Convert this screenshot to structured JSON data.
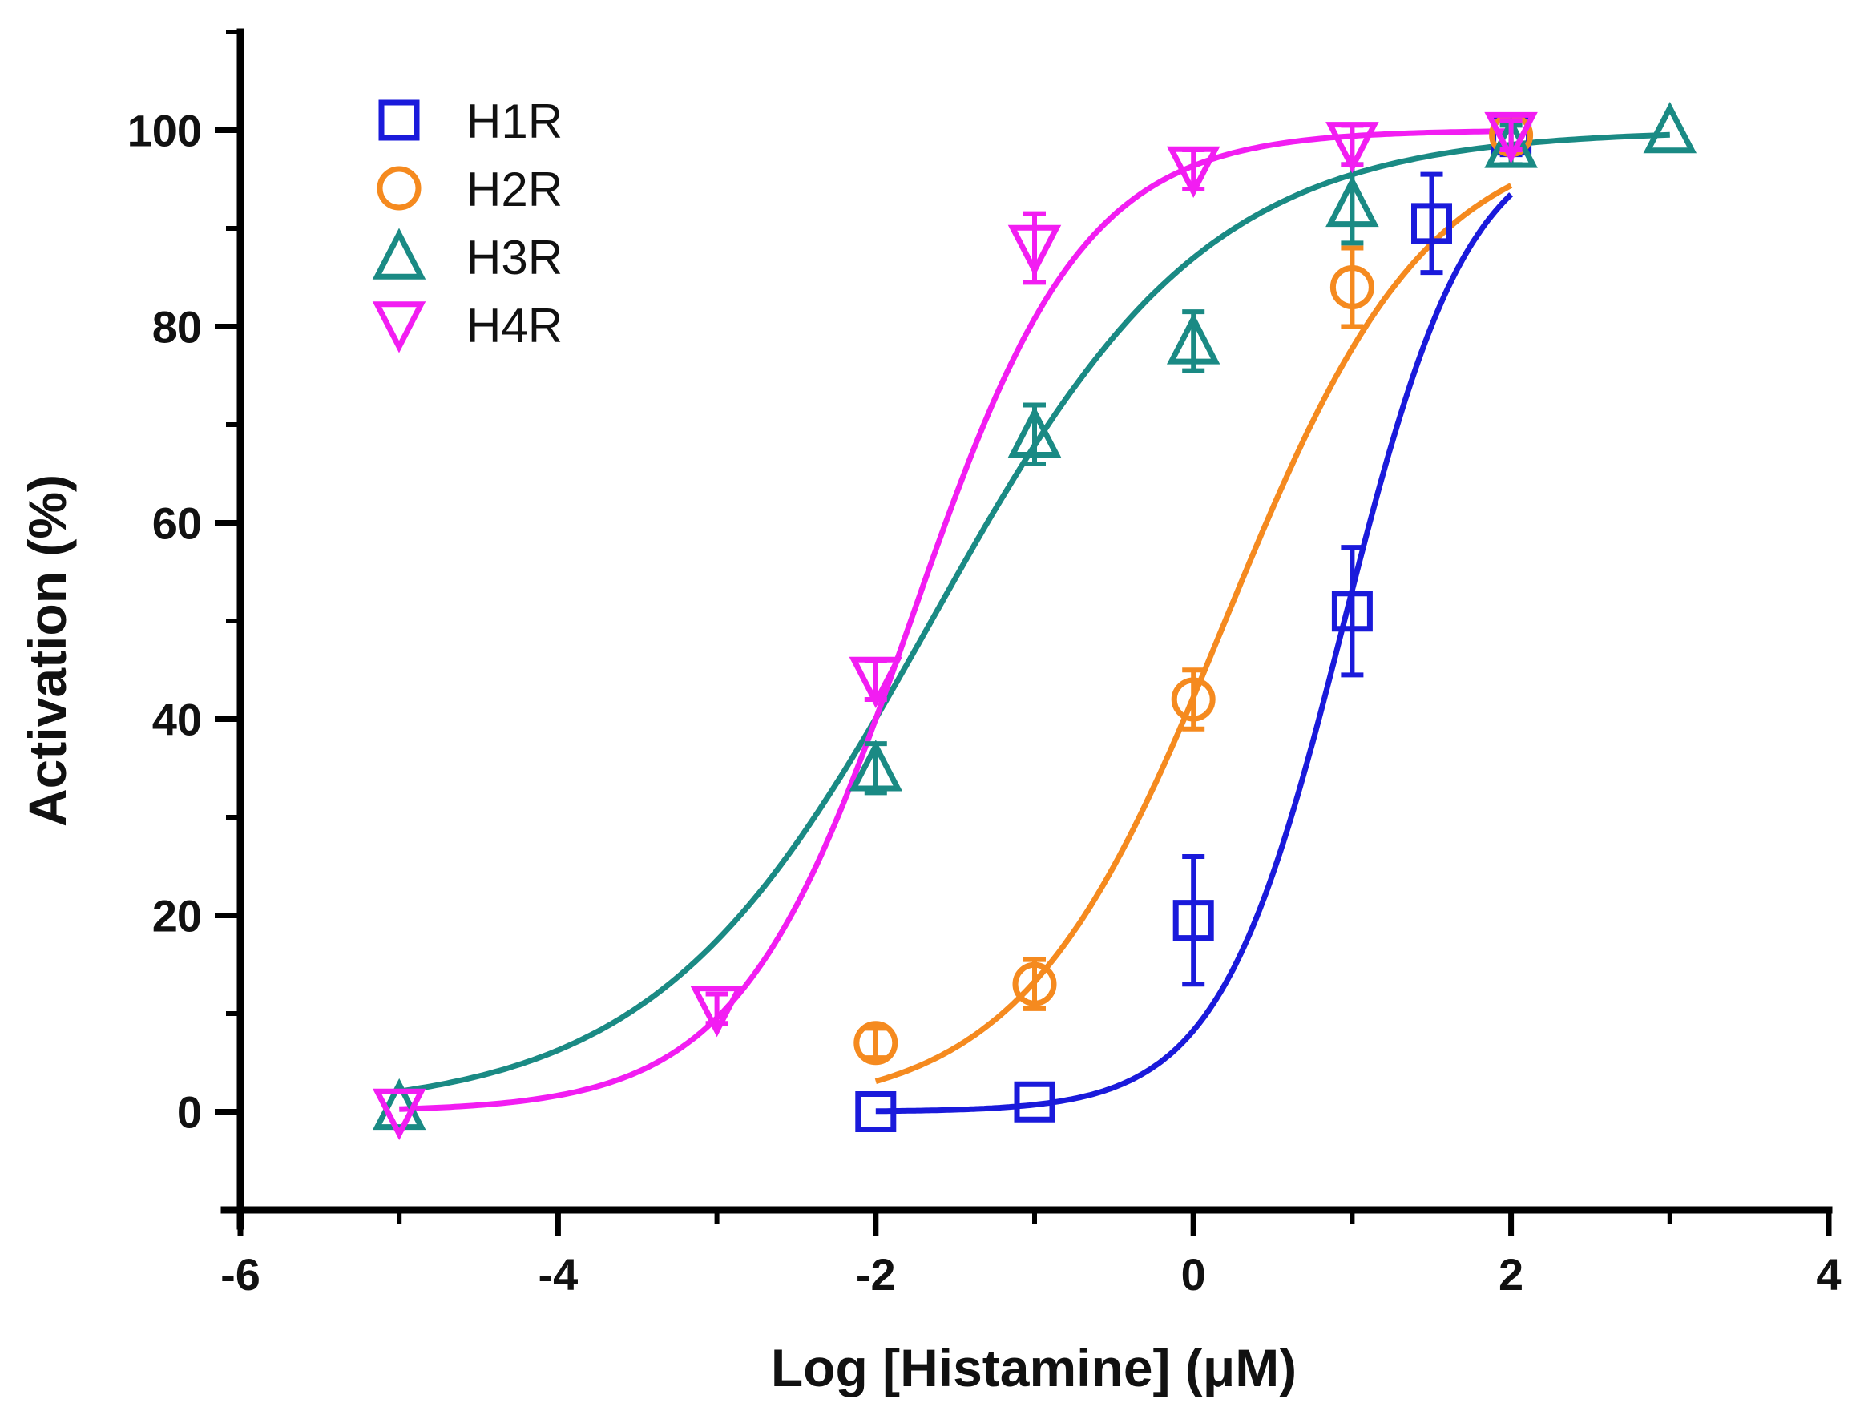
{
  "chart_data": {
    "type": "scatter",
    "title": "",
    "xlabel": "Log [Histamine] (μM)",
    "ylabel": "Activation (%)",
    "xlim": [
      -6,
      4
    ],
    "ylim": [
      -10,
      110
    ],
    "xticks": [
      -6,
      -4,
      -2,
      0,
      2,
      4
    ],
    "yticks": [
      0,
      20,
      40,
      60,
      80,
      100
    ],
    "xtick_labels": [
      "-6",
      "-4",
      "-2",
      "0",
      "2",
      "4"
    ],
    "ytick_labels": [
      "0",
      "20",
      "40",
      "60",
      "80",
      "100"
    ],
    "grid": false,
    "legend_position": "top-left",
    "fit": "sigmoidal dose-response curves (bottom 0, top 100)",
    "series": [
      {
        "name": "H1R",
        "marker": "square",
        "color": "#1a1adb",
        "x": [
          -2,
          -1,
          0,
          1,
          1.5,
          2
        ],
        "y": [
          0,
          1,
          19.5,
          51,
          90.5,
          99.5
        ],
        "err": [
          0.5,
          0.5,
          6.5,
          6.5,
          5,
          2
        ],
        "fit_logEC50": 0.95,
        "fit_hill": 1.1
      },
      {
        "name": "H2R",
        "marker": "circle",
        "color": "#f58a1f",
        "x": [
          -2,
          -1,
          0,
          1,
          2
        ],
        "y": [
          7,
          13,
          42,
          84,
          99.5
        ],
        "err": [
          1.5,
          2.5,
          3,
          4,
          1.5
        ],
        "fit_logEC50": 0.2,
        "fit_hill": 0.68
      },
      {
        "name": "H3R",
        "marker": "triangle-up",
        "color": "#1a8a84",
        "x": [
          -5,
          -2,
          -1,
          0,
          1,
          2,
          3
        ],
        "y": [
          0.5,
          35,
          69,
          78.5,
          92.5,
          98.5,
          100
        ],
        "err": [
          0.5,
          2.5,
          3,
          3,
          4,
          2,
          0.5
        ],
        "fit_logEC50": -1.65,
        "fit_hill": 0.5
      },
      {
        "name": "H4R",
        "marker": "triangle-down",
        "color": "#f21df2",
        "x": [
          -5,
          -3,
          -2,
          -1,
          0,
          1,
          2
        ],
        "y": [
          0,
          10.5,
          44,
          88,
          96,
          98.5,
          99.5
        ],
        "err": [
          0.5,
          1.5,
          2,
          3.5,
          2,
          2,
          1.5
        ],
        "fit_logEC50": -1.78,
        "fit_hill": 0.8
      }
    ]
  }
}
